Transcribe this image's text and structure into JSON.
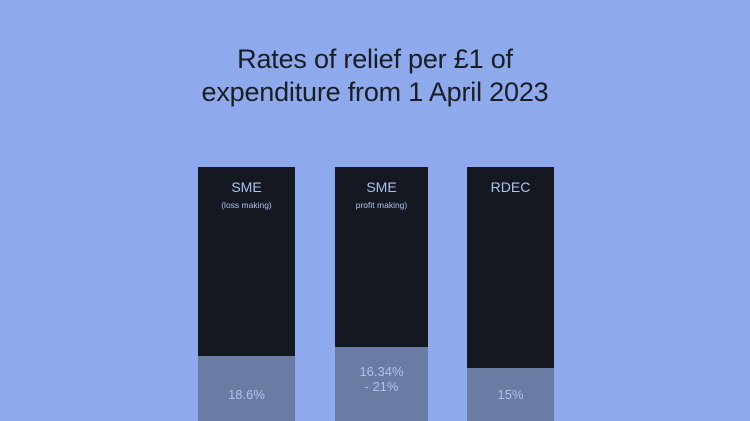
{
  "chart_data": {
    "type": "bar",
    "title_lines": [
      "Rates of relief per £1 of",
      "expenditure from 1 April 2023"
    ],
    "bars": [
      {
        "name": "SME",
        "sublabel": "(loss making)",
        "value_label": [
          "18.6%"
        ],
        "value": 18.6
      },
      {
        "name": "SME",
        "sublabel": "profit making)",
        "value_label": [
          "16.34%",
          "- 21%"
        ],
        "value": 21
      },
      {
        "name": "RDEC",
        "sublabel": "",
        "value_label": [
          "15%"
        ],
        "value": 15
      }
    ],
    "colors": {
      "background": "#8eaaec",
      "bar": "#141821",
      "fill": "#6a7ba4",
      "label": "#aec2f2",
      "title": "#1a1d24"
    }
  }
}
